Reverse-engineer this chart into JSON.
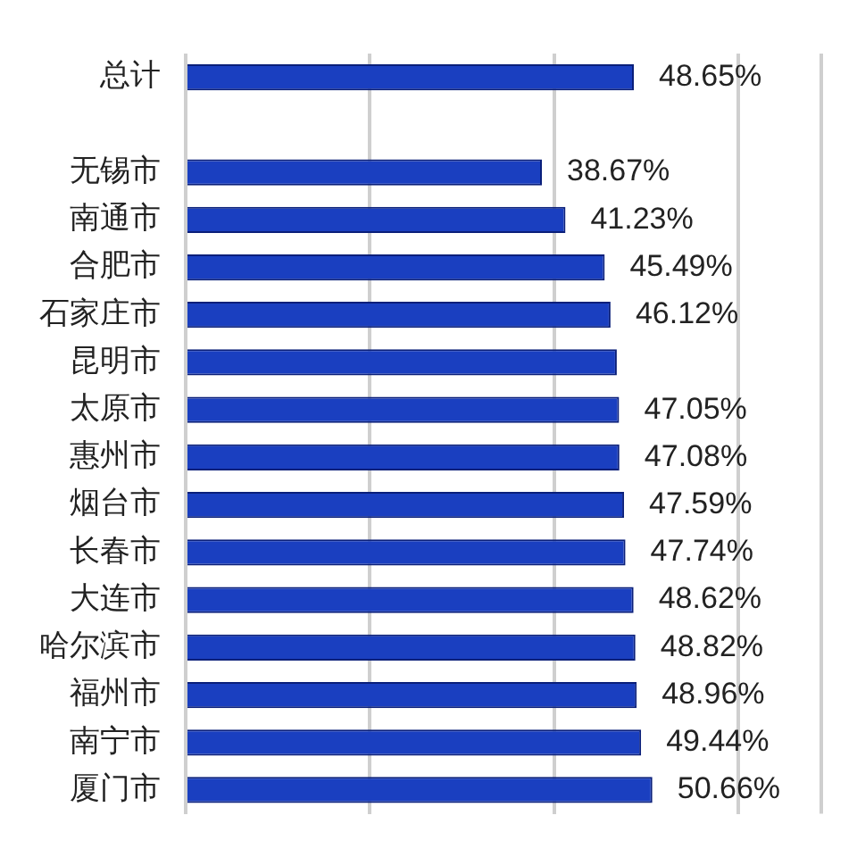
{
  "chart_data": {
    "type": "bar",
    "orientation": "horizontal",
    "categories": [
      "总计",
      null,
      "无锡市",
      "南通市",
      "合肥市",
      "石家庄市",
      "昆明市",
      "太原市",
      "惠州市",
      "烟台市",
      "长春市",
      "大连市",
      "哈尔滨市",
      "福州市",
      "南宁市",
      "厦门市"
    ],
    "values": [
      48.65,
      null,
      38.67,
      41.23,
      45.49,
      46.12,
      46.8,
      47.05,
      47.08,
      47.59,
      47.74,
      48.62,
      48.82,
      48.96,
      49.44,
      50.66
    ],
    "value_labels": [
      "48.65%",
      null,
      "38.67%",
      "41.23%",
      "45.49%",
      "46.12%",
      null,
      "47.05%",
      "47.08%",
      "47.59%",
      "47.74%",
      "48.62%",
      "48.82%",
      "48.96%",
      "49.44%",
      "50.66%"
    ],
    "color": "#1a3fc0",
    "xlim": [
      0,
      69
    ],
    "xticks": [
      {
        "value": 0,
        "label": null
      },
      {
        "value": 20,
        "label": null
      },
      {
        "value": 40,
        "label": null
      },
      {
        "value": 60,
        "label": null
      }
    ],
    "grid": "x",
    "tick_labels": "y"
  }
}
